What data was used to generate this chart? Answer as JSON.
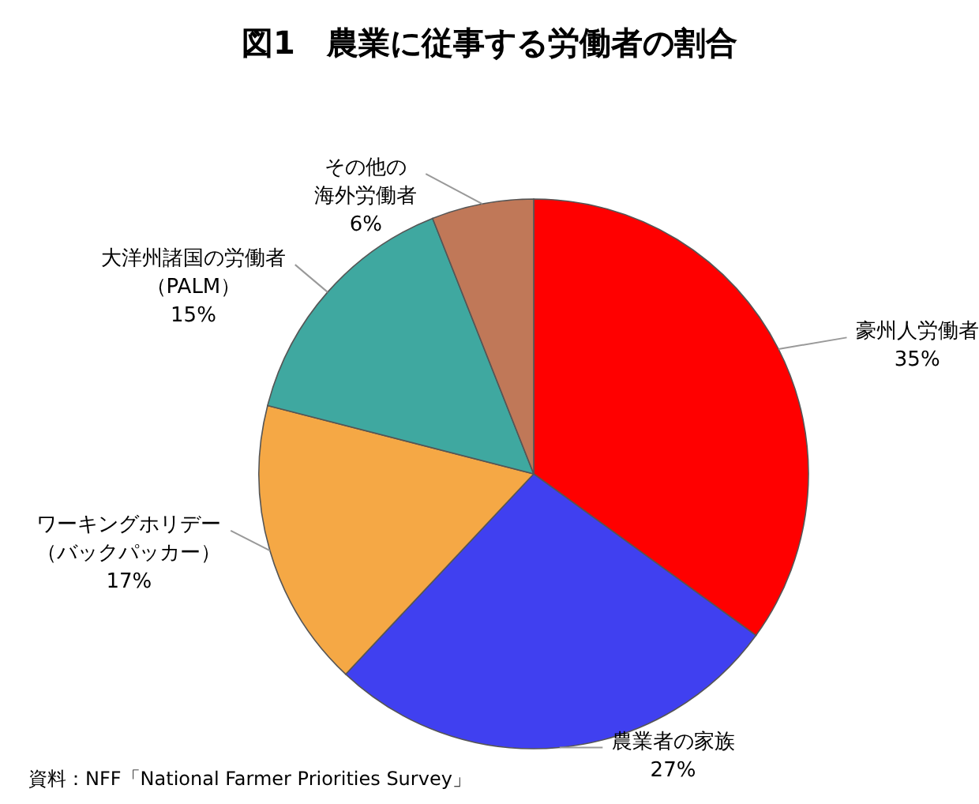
{
  "chart_data": {
    "type": "pie",
    "title": "図1　農業に従事する労働者の割合",
    "categories": [
      "豪州人労働者",
      "農業者の家族",
      "ワーキングホリデー（バックパッカー）",
      "大洋州諸国の労働者（PALM）",
      "その他の海外労働者"
    ],
    "values": [
      35,
      27,
      17,
      15,
      6
    ],
    "value_labels": [
      "35%",
      "27%",
      "17%",
      "15%",
      "6%"
    ],
    "colors": [
      "#ff0000",
      "#4040f0",
      "#f5a845",
      "#3fa8a0",
      "#c07858"
    ],
    "annotations": [
      "資料：NFF「National Farmer Priorities Survey」"
    ]
  }
}
